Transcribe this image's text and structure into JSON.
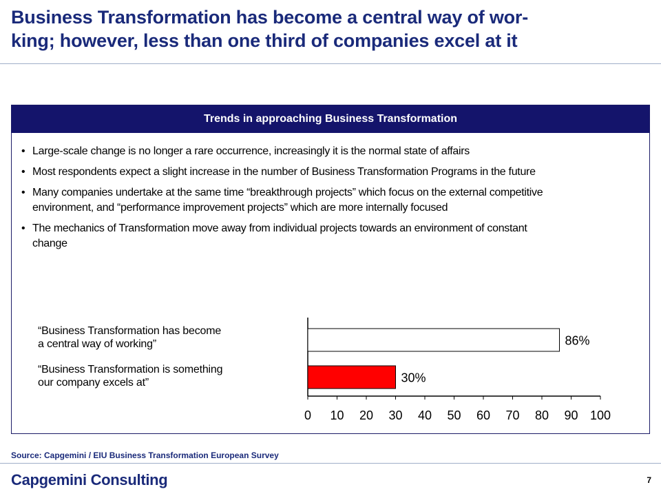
{
  "title": {
    "line1": "Business Transformation has become a central way of wor-",
    "line2": "king; however, less than one third of companies excel at it"
  },
  "panel": {
    "header": "Trends in approaching Business Transformation",
    "bullets": [
      "Large-scale change is no longer a rare occurrence, increasingly it is the normal state of affairs",
      "Most respondents expect a slight increase in the number of Business Transformation Programs in the future",
      "Many companies undertake at the same time “breakthrough projects” which focus on the external competitive environment, and “performance improvement projects” which are more internally focused",
      "The mechanics of Transformation move away from individual projects towards an environment of constant change"
    ]
  },
  "quotes": [
    {
      "line1": "“Business Transformation has become",
      "line2": "a central way of working”"
    },
    {
      "line1": "“Business Transformation is something",
      "line2": "our company excels at”"
    }
  ],
  "chart_data": {
    "type": "bar",
    "orientation": "horizontal",
    "categories": [
      "“Business Transformation has become a central way of working”",
      "“Business Transformation is something our company excels at”"
    ],
    "values": [
      86,
      30
    ],
    "data_labels": [
      "86%",
      "30%"
    ],
    "bar_colors": [
      "#ffffff",
      "#ff0000"
    ],
    "xlim": [
      0,
      100
    ],
    "xticks": [
      0,
      10,
      20,
      30,
      40,
      50,
      60,
      70,
      80,
      90,
      100
    ],
    "grid": false
  },
  "source": "Source: Capgemini / EIU Business Transformation European Survey",
  "logo": "Capgemini Consulting",
  "page_number": "7",
  "colors": {
    "title": "#1a2a7a",
    "header_bg": "#14146b",
    "bar_highlight": "#ff0000"
  }
}
